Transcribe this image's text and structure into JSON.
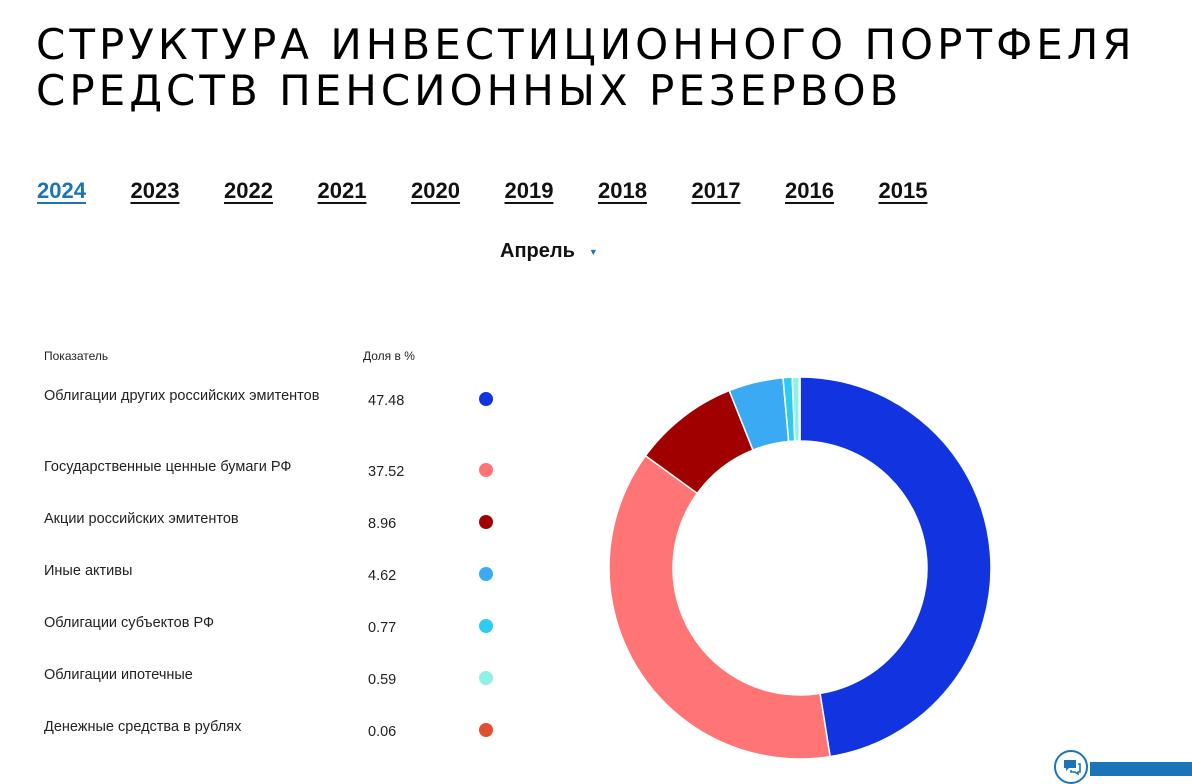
{
  "page": {
    "title_line1": "СТРУКТУРА ИНВЕСТИЦИОННОГО ПОРТФЕЛЯ",
    "title_line2": "СРЕДСТВ ПЕНСИОННЫХ РЕЗЕРВОВ"
  },
  "years": [
    "2024",
    "2023",
    "2022",
    "2021",
    "2020",
    "2019",
    "2018",
    "2017",
    "2016",
    "2015"
  ],
  "active_year": "2024",
  "month_select": {
    "value": "Апрель"
  },
  "table": {
    "col_indicator": "Показатель",
    "col_share": "Доля в %",
    "rows": [
      {
        "name": "Облигации других российских эмитентов",
        "value": "47.48",
        "color": "#1234e0"
      },
      {
        "name": "Государственные ценные бумаги РФ",
        "value": "37.52",
        "color": "#ff7575"
      },
      {
        "name": "Акции российских эмитентов",
        "value": "8.96",
        "color": "#a00000"
      },
      {
        "name": "Иные активы",
        "value": "4.62",
        "color": "#3aaaf5"
      },
      {
        "name": "Облигации субъектов РФ",
        "value": "0.77",
        "color": "#2ecbf0"
      },
      {
        "name": "Облигации ипотечные",
        "value": "0.59",
        "color": "#8ff0e6"
      },
      {
        "name": "Денежные средства в рублях",
        "value": "0.06",
        "color": "#e0502e"
      }
    ]
  },
  "chart_data": {
    "type": "pie",
    "variant": "donut",
    "categories": [
      "Облигации других российских эмитентов",
      "Государственные ценные бумаги РФ",
      "Акции российских эмитентов",
      "Иные активы",
      "Облигации субъектов РФ",
      "Облигации ипотечные",
      "Денежные средства в рублях"
    ],
    "values": [
      47.48,
      37.52,
      8.96,
      4.62,
      0.77,
      0.59,
      0.06
    ],
    "colors": [
      "#1234e0",
      "#ff7575",
      "#a00000",
      "#3aaaf5",
      "#2ecbf0",
      "#8ff0e6",
      "#e0502e"
    ]
  },
  "chat_widget": {
    "icon": "chat-icon"
  }
}
